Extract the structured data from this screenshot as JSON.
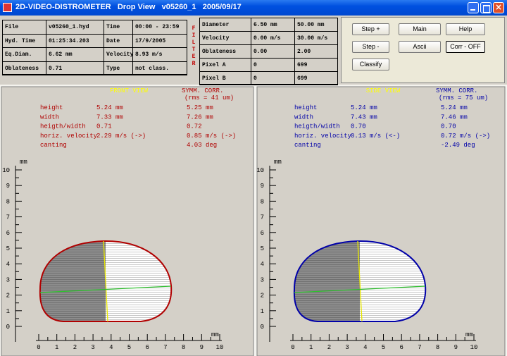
{
  "window": {
    "title": "2D-VIDEO-DISTROMETER   Drop View   v05260_1   2005/09/17"
  },
  "info_left": {
    "rows": [
      [
        "File",
        "v05260_1.hyd",
        "Time",
        "00:00 - 23:59"
      ],
      [
        "Hyd. Time",
        "01:25:34.203",
        "Date",
        "17/9/2005"
      ],
      [
        "Eq.Diam.",
        "6.62 mm",
        "Velocity",
        "8.93 m/s"
      ],
      [
        "Oblateness",
        "0.71",
        "Type",
        "not class."
      ]
    ]
  },
  "filter_label": "FILTER",
  "info_right": {
    "rows": [
      [
        "Diameter",
        "6.50 mm",
        "50.00 mm"
      ],
      [
        "Velocity",
        "0.00 m/s",
        "30.00 m/s"
      ],
      [
        "Oblateness",
        "0.00",
        "2.00"
      ],
      [
        "Pixel A",
        "0",
        "699"
      ],
      [
        "Pixel B",
        "0",
        "699"
      ]
    ]
  },
  "buttons": [
    "Step +",
    "Main",
    "Help",
    "Step -",
    "Ascii",
    "Corr - OFF",
    "Classify"
  ],
  "axes": {
    "x_label": "mm",
    "y_label": "mm",
    "x_ticks": [
      0,
      1,
      2,
      3,
      4,
      5,
      6,
      7,
      8,
      9,
      10
    ],
    "y_ticks": [
      0,
      1,
      2,
      3,
      4,
      5,
      6,
      7,
      8,
      9,
      10
    ]
  },
  "panels": [
    {
      "title": "FRONT VIEW",
      "corr_title": "SYMM. CORR.",
      "rms": "(rms = 41 um)",
      "color": "#b00000",
      "rows": [
        {
          "label": "height",
          "value": "5.24 mm",
          "corr": "5.25 mm"
        },
        {
          "label": "width",
          "value": "7.33 mm",
          "corr": "7.26 mm"
        },
        {
          "label": "heigth/width",
          "value": "0.71",
          "corr": "0.72"
        },
        {
          "label": "horiz. velocity",
          "value": "2.29 m/s (->)",
          "corr": "0.85 m/s (->)"
        },
        {
          "label": "canting",
          "corr": "4.03 deg"
        }
      ]
    },
    {
      "title": "SIDE VIEW",
      "corr_title": "SYMM. CORR.",
      "rms": "(rms = 75 um)",
      "color": "#0000a8",
      "rows": [
        {
          "label": "height",
          "value": "5.24 mm",
          "corr": "5.24 mm"
        },
        {
          "label": "width",
          "value": "7.43 mm",
          "corr": "7.46 mm"
        },
        {
          "label": "heigth/width",
          "value": "0.70",
          "corr": "0.70"
        },
        {
          "label": "horiz. velocity",
          "value": "0.13 m/s (<-)",
          "corr": "0.72 m/s (->)"
        },
        {
          "label": "canting",
          "corr": "-2.49 deg"
        }
      ]
    }
  ]
}
